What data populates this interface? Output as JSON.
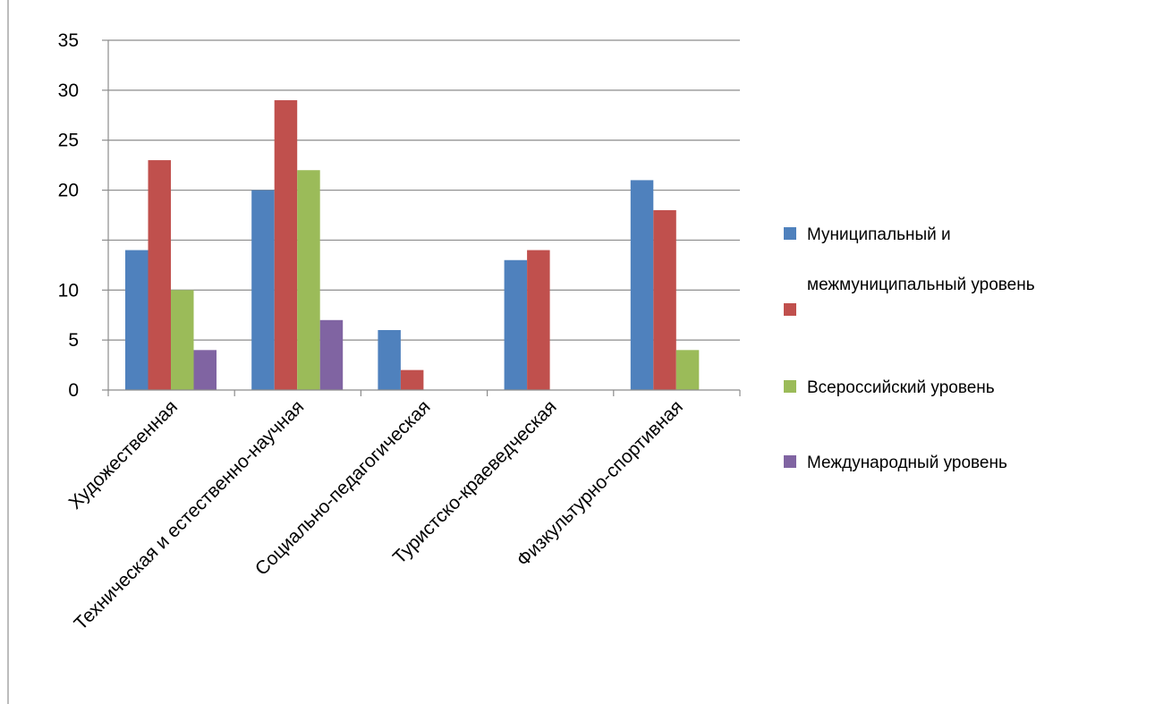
{
  "chart_data": {
    "type": "bar",
    "title": "",
    "xlabel": "",
    "ylabel": "",
    "ylim": [
      0,
      35
    ],
    "y_ticks": [
      {
        "value": 0,
        "label": "0"
      },
      {
        "value": 5,
        "label": "5"
      },
      {
        "value": 10,
        "label": "10"
      },
      {
        "value": 20,
        "label": "20"
      },
      {
        "value": 25,
        "label": "25"
      },
      {
        "value": 30,
        "label": "30"
      },
      {
        "value": 35,
        "label": "35"
      }
    ],
    "gridlines": [
      5,
      10,
      15,
      20,
      25,
      30,
      35
    ],
    "grid": true,
    "legend_position": "right",
    "categories": [
      "Художественная",
      "Техническая и естественно-научная",
      "Социально-педагогическая",
      "Туристско-краеведческая",
      "Физкультурно-спортивная"
    ],
    "series": [
      {
        "name": "Муниципальный и межмуниципальный уровень",
        "color": "#4F81BD",
        "values": [
          14,
          20,
          6,
          13,
          21
        ]
      },
      {
        "name": "",
        "color": "#C0504D",
        "values": [
          23,
          29,
          2,
          14,
          18
        ]
      },
      {
        "name": "Всероссийский уровень",
        "color": "#9BBB59",
        "values": [
          10,
          22,
          0,
          0,
          4
        ]
      },
      {
        "name": "Международный уровень",
        "color": "#8064A2",
        "values": [
          4,
          7,
          0,
          0,
          0
        ]
      }
    ],
    "legend": [
      {
        "lines": [
          "Муниципальный и",
          "межмуниципальный уровень"
        ],
        "color": "#4F81BD"
      },
      {
        "lines": [],
        "color": "#C0504D"
      },
      {
        "lines": [
          "Всероссийский уровень"
        ],
        "color": "#9BBB59"
      },
      {
        "lines": [
          "Международный уровень"
        ],
        "color": "#8064A2"
      }
    ]
  }
}
